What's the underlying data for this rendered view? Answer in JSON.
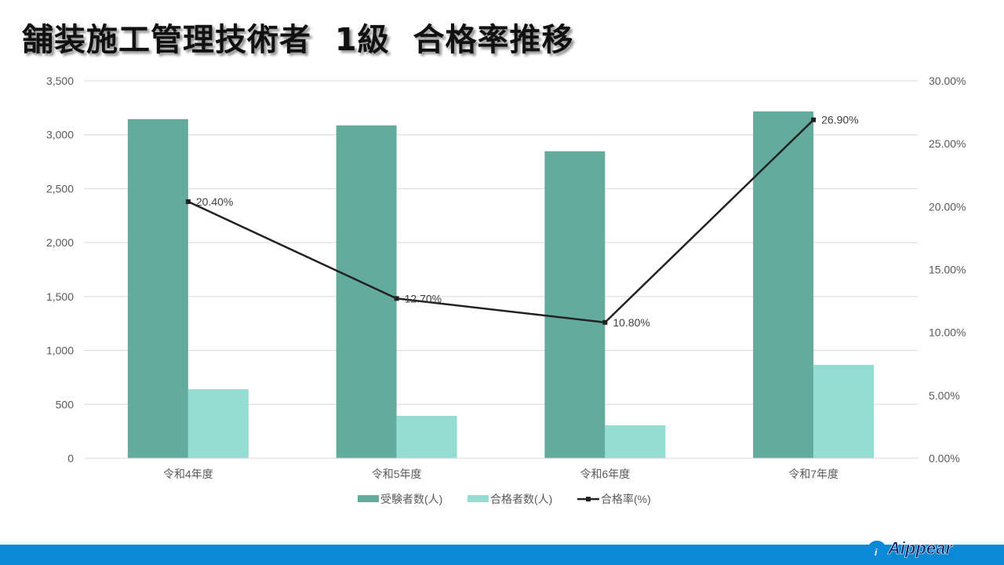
{
  "page": {
    "title": "舗装施工管理技術者  1級  合格率推移",
    "logo_text": "Aippear"
  },
  "colors": {
    "examinees": "#64ab9f",
    "passers": "#95dcd3",
    "rate_line": "#222222",
    "grid": "#d9d9d9",
    "axis_text": "#595959",
    "footer": "#0a8ad6"
  },
  "chart_data": {
    "type": "bar",
    "title": "舗装施工管理技術者 1級 合格率推移",
    "categories": [
      "令和4年度",
      "令和5年度",
      "令和6年度",
      "令和7年度"
    ],
    "series": [
      {
        "name": "受験者数(人)",
        "type": "bar",
        "axis": "left",
        "values": [
          3145,
          3087,
          2847,
          3216
        ]
      },
      {
        "name": "合格者数(人)",
        "type": "bar",
        "axis": "left",
        "values": [
          640,
          393,
          306,
          866
        ]
      },
      {
        "name": "合格率(%)",
        "type": "line",
        "axis": "right",
        "values": [
          20.4,
          12.7,
          10.8,
          26.9
        ],
        "labels": [
          "20.40%",
          "12.70%",
          "10.80%",
          "26.90%"
        ]
      }
    ],
    "left_axis": {
      "ylim": [
        0,
        3500
      ],
      "ticks": [
        "0",
        "500",
        "1,000",
        "1,500",
        "2,000",
        "2,500",
        "3,000",
        "3,500"
      ]
    },
    "right_axis": {
      "ylim": [
        0,
        30
      ],
      "ticks": [
        "0.00%",
        "5.00%",
        "10.00%",
        "15.00%",
        "20.00%",
        "25.00%",
        "30.00%"
      ]
    },
    "xlabel": "",
    "ylabel": "",
    "grid": true,
    "legend_position": "bottom",
    "legend": [
      "受験者数(人)",
      "合格者数(人)",
      "合格率(%)"
    ]
  }
}
